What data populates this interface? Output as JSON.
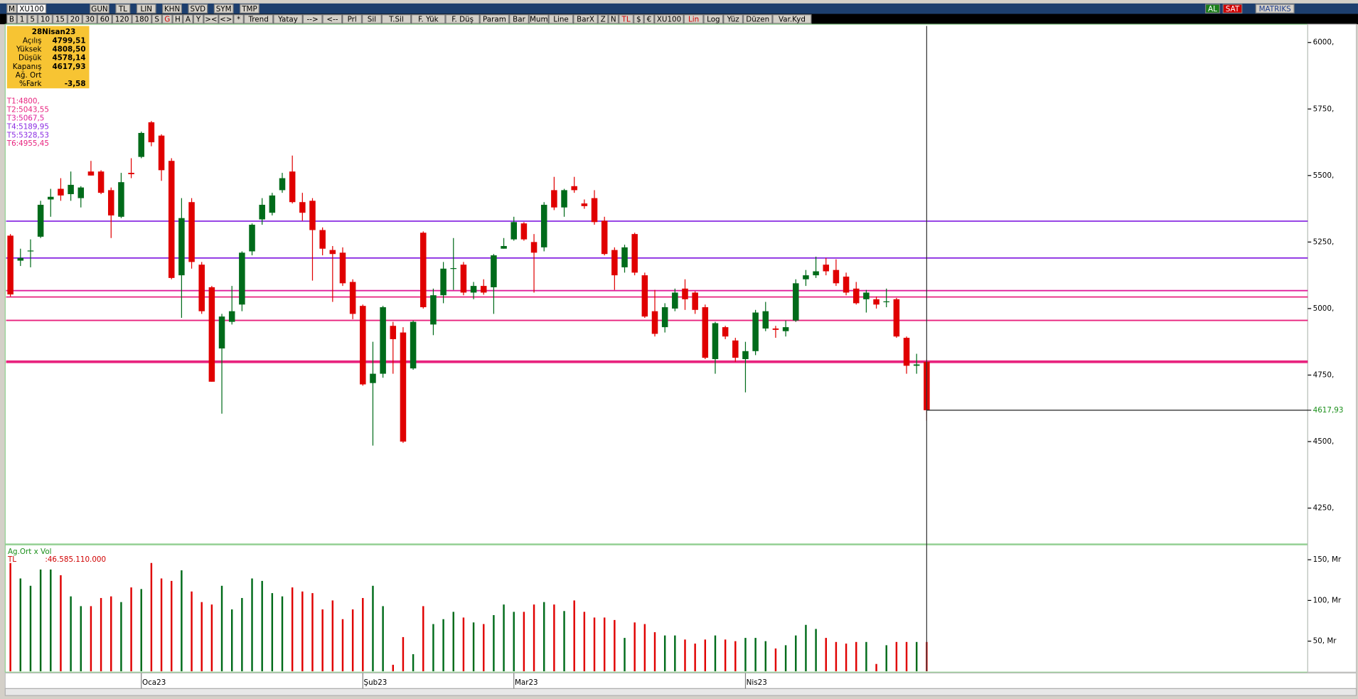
{
  "toolbar": {
    "row1_left": [
      "M",
      "XU100"
    ],
    "row1_mid": [
      "GUN",
      "TL",
      "LIN",
      "KHN",
      "SVD",
      "SYM",
      "TMP"
    ],
    "row1_right": [
      {
        "text": "AL",
        "color": "#1a7f1a"
      },
      {
        "text": "SAT",
        "color": "#d00000"
      },
      {
        "text": "MATRIKS",
        "color": "#1f3f8f"
      }
    ],
    "row2": [
      {
        "text": "B"
      },
      {
        "text": "1"
      },
      {
        "text": "5"
      },
      {
        "text": "10"
      },
      {
        "text": "15"
      },
      {
        "text": "20"
      },
      {
        "text": "30"
      },
      {
        "text": "60"
      },
      {
        "text": "120"
      },
      {
        "text": "180"
      },
      {
        "text": "S"
      },
      {
        "text": "G",
        "color": "#d00000"
      },
      {
        "text": "H"
      },
      {
        "text": "A"
      },
      {
        "text": "Y"
      },
      {
        "text": "><"
      },
      {
        "text": "<>"
      },
      {
        "text": "*"
      },
      {
        "text": "Trend"
      },
      {
        "text": "Yatay"
      },
      {
        "text": "-->"
      },
      {
        "text": "<--"
      },
      {
        "text": "Prl"
      },
      {
        "text": "Sil"
      },
      {
        "text": "T.Sil"
      },
      {
        "text": "F. Yük"
      },
      {
        "text": "F. Düş"
      },
      {
        "text": "Param"
      },
      {
        "text": "Bar"
      },
      {
        "text": "Mum"
      },
      {
        "text": "Line"
      },
      {
        "text": "BarX"
      },
      {
        "text": "Z"
      },
      {
        "text": "N"
      },
      {
        "text": "TL",
        "color": "#d00000"
      },
      {
        "text": "$"
      },
      {
        "text": "€"
      },
      {
        "text": "XU100"
      },
      {
        "text": "Lin",
        "color": "#d00000"
      },
      {
        "text": "Log"
      },
      {
        "text": "Yüz"
      },
      {
        "text": "Düzen"
      },
      {
        "text": "Var.Kyd"
      }
    ]
  },
  "info_box": {
    "date": "28Nisan23",
    "rows": [
      {
        "label": "Açılış",
        "value": "4799,51"
      },
      {
        "label": "Yüksek",
        "value": "4808,50"
      },
      {
        "label": "Düşük",
        "value": "4578,14"
      },
      {
        "label": "Kapanış",
        "value": "4617,93"
      },
      {
        "label": "Ağ. Ort"
      },
      {
        "label": "%Fark",
        "value": "-3,58"
      }
    ]
  },
  "chart_data": [
    {
      "type": "candlestick",
      "categories": [
        null,
        null,
        null,
        null,
        null,
        null,
        null,
        null,
        null,
        null,
        null,
        null,
        null,
        "Oca23",
        null,
        null,
        null,
        null,
        null,
        null,
        null,
        null,
        null,
        null,
        null,
        null,
        null,
        null,
        null,
        null,
        null,
        null,
        null,
        null,
        null,
        "Şub23",
        null,
        null,
        null,
        null,
        null,
        null,
        null,
        null,
        null,
        null,
        null,
        null,
        null,
        null,
        "Mar23",
        null,
        null,
        null,
        null,
        null,
        null,
        null,
        null,
        null,
        null,
        null,
        null,
        null,
        null,
        null,
        null,
        null,
        null,
        null,
        null,
        null,
        null,
        "Nis23",
        null,
        null,
        null,
        null,
        null,
        null,
        null,
        null,
        null,
        null,
        null,
        null,
        null,
        null,
        null,
        null,
        null,
        null
      ],
      "open": [
        5274,
        5180,
        5215,
        5270,
        5410,
        5450,
        5430,
        5415,
        5515,
        5515,
        5445,
        5345,
        5510,
        5570,
        5700,
        5650,
        5555,
        5125,
        5400,
        5165,
        5080,
        4850,
        4950,
        5015,
        5215,
        5335,
        5360,
        5445,
        5515,
        5400,
        5405,
        5295,
        5220,
        5210,
        5100,
        5010,
        4720,
        4755,
        4935,
        4910,
        4775,
        5285,
        4940,
        5050,
        5150,
        5165,
        5060,
        5085,
        5080,
        5225,
        5260,
        5320,
        5250,
        5230,
        5445,
        5380,
        5460,
        5395,
        5415,
        5330,
        5220,
        5155,
        5280,
        5125,
        4990,
        4930,
        5000,
        5075,
        5060,
        5005,
        4810,
        4930,
        4880,
        4810,
        4840,
        4925,
        4925,
        4915,
        4955,
        5110,
        5125,
        5165,
        5145,
        5120,
        5075,
        5035,
        5035,
        5025,
        5035,
        4890,
        4785,
        4799.51
      ],
      "high": [
        5280,
        5225,
        5260,
        5405,
        5450,
        5490,
        5515,
        5460,
        5555,
        5520,
        5455,
        5510,
        5565,
        5665,
        5705,
        5655,
        5565,
        5415,
        5415,
        5175,
        5085,
        4980,
        5085,
        5215,
        5320,
        5415,
        5435,
        5510,
        5575,
        5435,
        5415,
        5305,
        5235,
        5230,
        5110,
        5015,
        4875,
        5010,
        4950,
        4930,
        4955,
        5290,
        5075,
        5175,
        5265,
        5175,
        5100,
        5110,
        5205,
        5265,
        5345,
        5325,
        5280,
        5400,
        5495,
        5450,
        5495,
        5410,
        5445,
        5345,
        5230,
        5240,
        5285,
        5135,
        5070,
        5020,
        5075,
        5110,
        5065,
        5015,
        4950,
        4935,
        4890,
        4875,
        4995,
        5025,
        4935,
        4955,
        5110,
        5145,
        5195,
        5190,
        5185,
        5135,
        5100,
        5070,
        5045,
        5075,
        5040,
        4895,
        4830,
        4808.5
      ],
      "low": [
        5045,
        5160,
        5155,
        5265,
        5345,
        5405,
        5405,
        5380,
        5500,
        5430,
        5265,
        5340,
        5490,
        5565,
        5610,
        5480,
        5110,
        4965,
        5150,
        4980,
        4725,
        4605,
        4940,
        4990,
        5200,
        5315,
        5350,
        5435,
        5395,
        5330,
        5105,
        5200,
        5025,
        5085,
        4960,
        4710,
        4485,
        4740,
        4755,
        4495,
        4770,
        5000,
        4900,
        5020,
        5070,
        5050,
        5035,
        5052,
        4980,
        5225,
        5255,
        5255,
        5060,
        5215,
        5370,
        5345,
        5435,
        5375,
        5315,
        5200,
        5070,
        5135,
        5125,
        4965,
        4895,
        4910,
        4990,
        4995,
        4980,
        4810,
        4755,
        4885,
        4800,
        4685,
        4825,
        4915,
        4890,
        4895,
        4950,
        5085,
        5115,
        5125,
        5085,
        5050,
        5015,
        4985,
        5000,
        5005,
        4890,
        4755,
        4755,
        4578.14
      ],
      "close": [
        5053,
        5190,
        5218,
        5390,
        5420,
        5425,
        5465,
        5455,
        5500,
        5435,
        5350,
        5475,
        5505,
        5660,
        5625,
        5520,
        5115,
        5340,
        5175,
        4990,
        4725,
        4970,
        4990,
        5210,
        5315,
        5390,
        5425,
        5490,
        5400,
        5360,
        5295,
        5225,
        5205,
        5095,
        4980,
        4715,
        4755,
        5005,
        4885,
        4500,
        4950,
        5005,
        5050,
        5150,
        5152,
        5060,
        5085,
        5060,
        5200,
        5235,
        5325,
        5260,
        5210,
        5390,
        5380,
        5445,
        5445,
        5385,
        5325,
        5205,
        5125,
        5230,
        5135,
        4970,
        4905,
        5005,
        5060,
        5035,
        4995,
        4815,
        4945,
        4895,
        4815,
        4840,
        4985,
        4990,
        4920,
        4930,
        5095,
        5125,
        5140,
        5140,
        5095,
        5060,
        5020,
        5060,
        5015,
        5027,
        4895,
        4785,
        4790,
        4617.93
      ],
      "up_color": "#006b1a",
      "down_color": "#e00000",
      "ylim": [
        4125,
        6062
      ],
      "yticks": [
        {
          "value": 4250,
          "label": "4250,"
        },
        {
          "value": 4500,
          "label": "4500,"
        },
        {
          "value": 4750,
          "label": "4750,"
        },
        {
          "value": 5000,
          "label": "5000,"
        },
        {
          "value": 5250,
          "label": "5250,"
        },
        {
          "value": 5500,
          "label": "5500,"
        },
        {
          "value": 5750,
          "label": "5750,"
        },
        {
          "value": 6000,
          "label": "6000,"
        }
      ],
      "levels": [
        {
          "label": "T1:4800,",
          "value": 4800,
          "color": "#e8237e",
          "width": 3
        },
        {
          "label": "T2:5043,55",
          "value": 5043.55,
          "color": "#e8237e",
          "width": 1.5
        },
        {
          "label": "T3:5067,5",
          "value": 5067.5,
          "color": "#e0209a",
          "width": 1.5
        },
        {
          "label": "T4:5189,95",
          "value": 5189.95,
          "color": "#8a2be2",
          "width": 1.5
        },
        {
          "label": "T5:5328,53",
          "value": 5328.53,
          "color": "#8a2be2",
          "width": 1.5
        },
        {
          "label": "T6:4955,45",
          "value": 4955.45,
          "color": "#e8237e",
          "width": 1.5
        }
      ],
      "last_price": {
        "value": 4617.93,
        "label": "4617,93"
      },
      "last_price_color": "#1a8f1a"
    },
    {
      "type": "bar",
      "title": "Ag.Ort x Vol",
      "currency": "TL",
      "total": ":46.585.110.000",
      "values": [
        146,
        127,
        118,
        138,
        138,
        131,
        105,
        93,
        93,
        103,
        105,
        98,
        116,
        114,
        146,
        127,
        124,
        137,
        111,
        98,
        95,
        118,
        89,
        103,
        127,
        124,
        109,
        105,
        116,
        111,
        109,
        89,
        100,
        77,
        89,
        103,
        118,
        93,
        21,
        55,
        34,
        93,
        71,
        77,
        86,
        79,
        73,
        71,
        82,
        95,
        86,
        86,
        95,
        98,
        95,
        87,
        100,
        86,
        79,
        79,
        76,
        54,
        73,
        71,
        61,
        57,
        57,
        52,
        47,
        52,
        57,
        52,
        50,
        54,
        54,
        50,
        41,
        45,
        57,
        70,
        65,
        54,
        49,
        47,
        49,
        49,
        22,
        45,
        49,
        49,
        49,
        49
      ],
      "ylim": [
        13,
        163
      ],
      "yticks": [
        {
          "value": 50,
          "label": "50, Mr"
        },
        {
          "value": 100,
          "label": "100, Mr"
        },
        {
          "value": 150,
          "label": "150, Mr"
        }
      ]
    }
  ]
}
